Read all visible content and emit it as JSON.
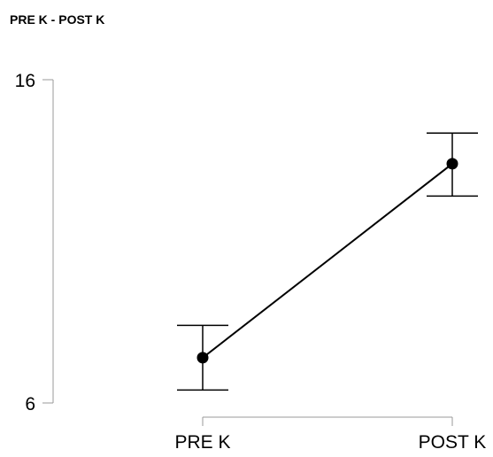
{
  "page_title": "PRE K - POST K",
  "chart_data": {
    "type": "line",
    "title": "",
    "xlabel": "",
    "ylabel": "",
    "categories": [
      "PRE K",
      "POST K"
    ],
    "series": [
      {
        "values": [
          7.4,
          13.4
        ],
        "error_lower": [
          6.4,
          12.4
        ],
        "error_upper": [
          8.4,
          14.35
        ]
      }
    ],
    "ylim": [
      6,
      16
    ],
    "y_ticks": [
      "6",
      "16"
    ],
    "grid": false,
    "legend": "none",
    "colors": {
      "line": "#000000",
      "axis": "#999999"
    }
  }
}
